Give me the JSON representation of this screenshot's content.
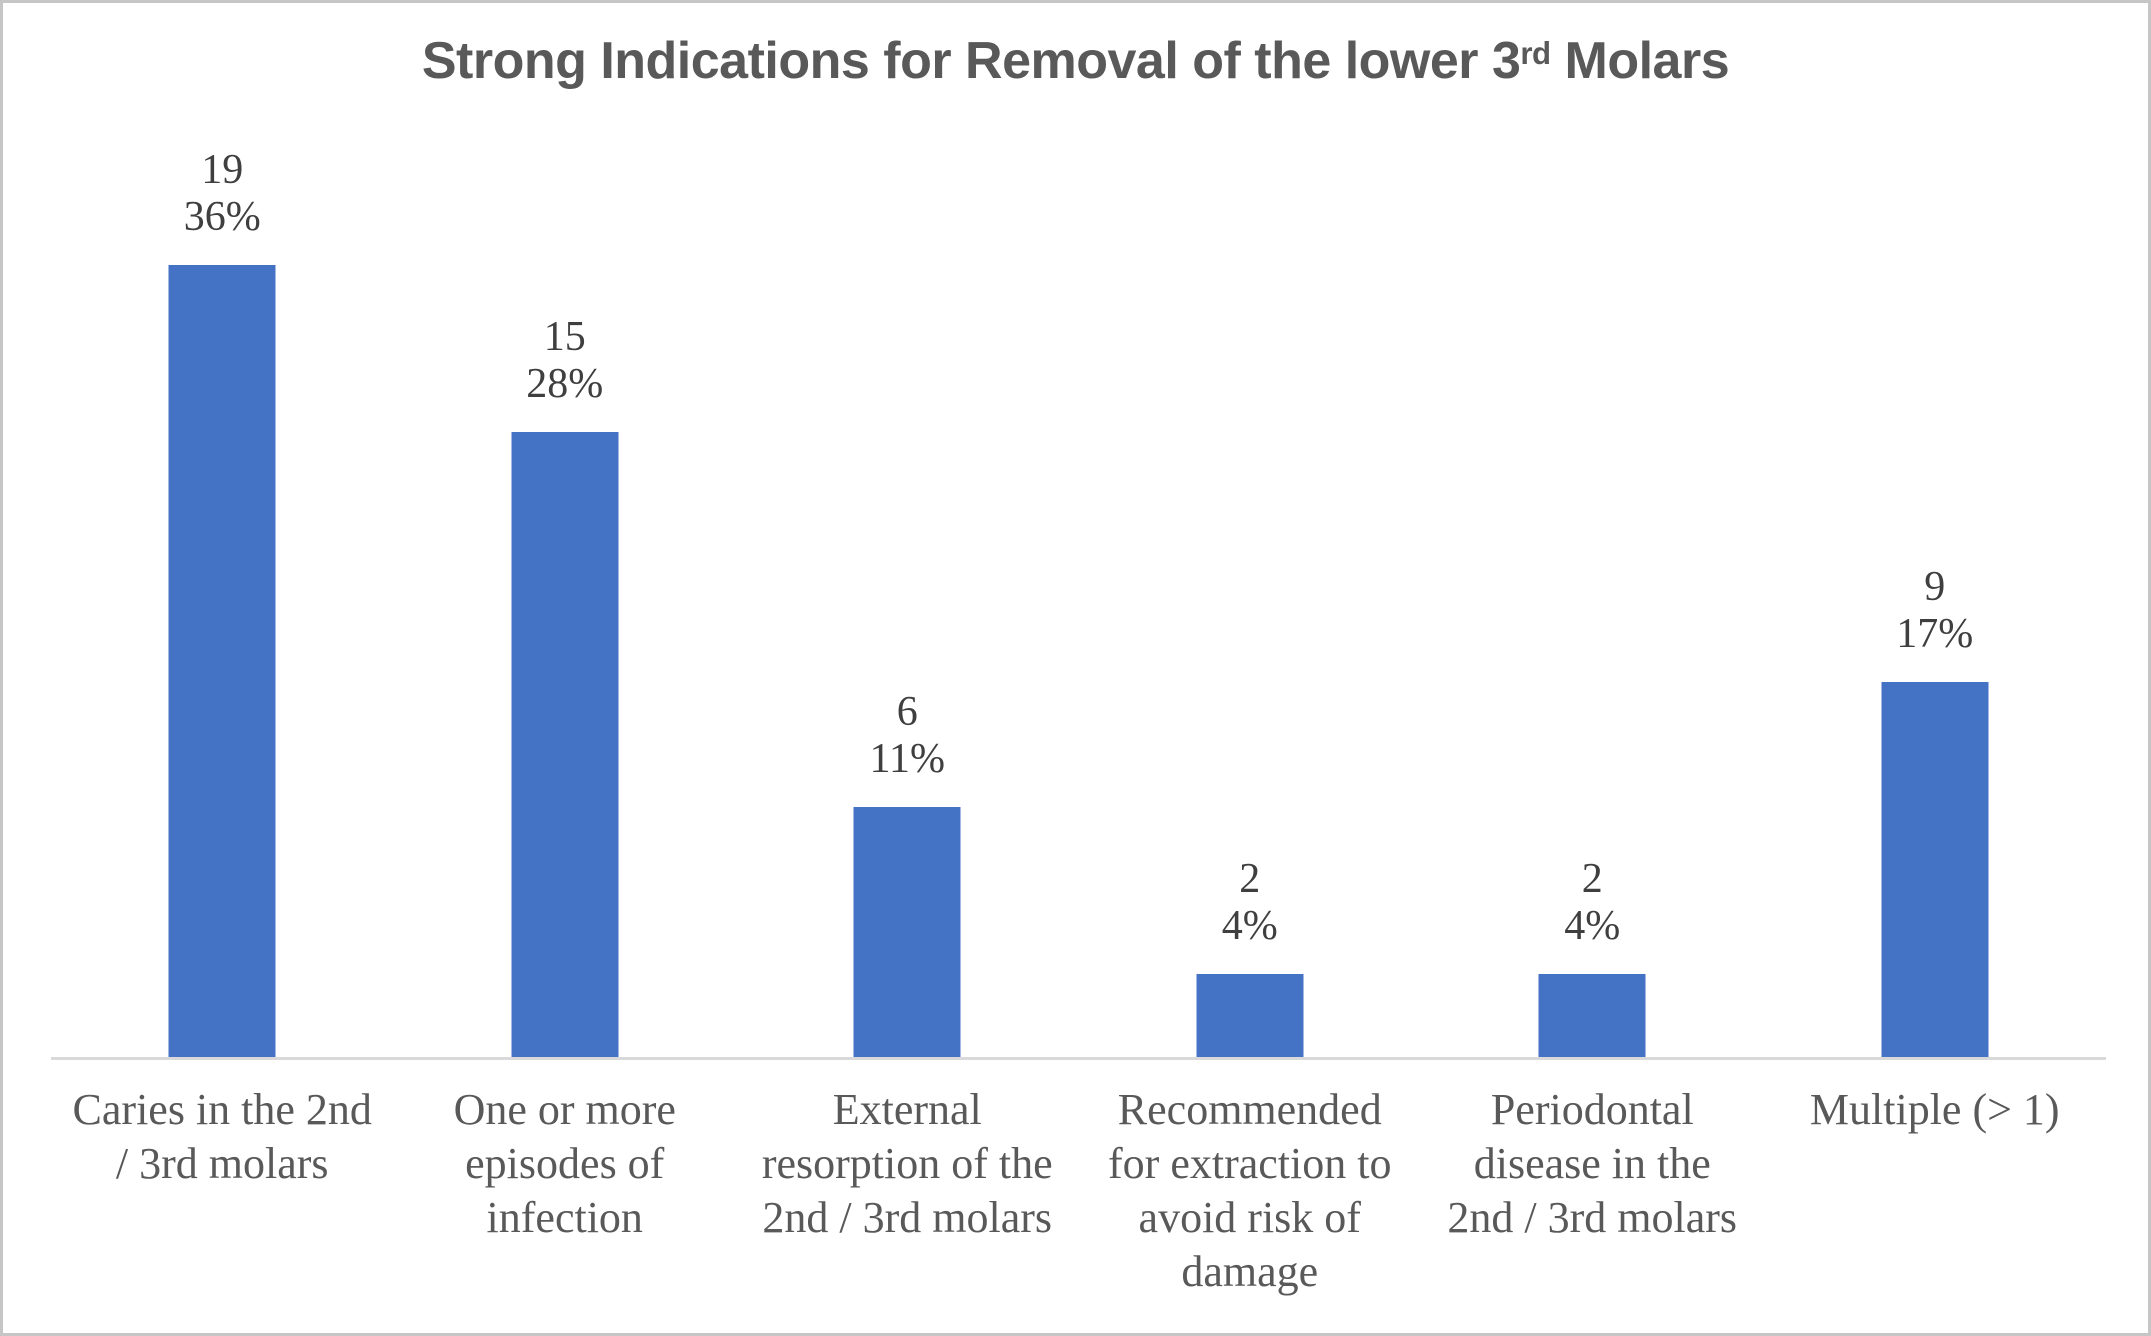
{
  "page": {
    "background_color": "#ffffff",
    "border_color": "#c6c6c6"
  },
  "chart_data": {
    "type": "bar",
    "title": "Strong Indications for Removal of the lower 3rd Molars",
    "title_parts": {
      "prefix": "Strong Indications for Removal of the lower 3",
      "superscript": "rd",
      "suffix": " Molars"
    },
    "categories": [
      "Caries in the 2nd / 3rd molars",
      "One or more episodes of infection",
      "External resorption of the 2nd / 3rd molars",
      "Recommended for extraction to avoid risk of damage",
      "Periodontal disease in the 2nd / 3rd molars",
      "Multiple (> 1)"
    ],
    "category_label_lines": [
      "Caries in the 2nd\n/ 3rd molars",
      "One or more\nepisodes of\ninfection",
      "External\nresorption of the\n2nd / 3rd molars",
      "Recommended\nfor extraction to\navoid risk of\ndamage",
      "Periodontal\ndisease in the\n2nd / 3rd molars",
      "Multiple (> 1)"
    ],
    "values": [
      19,
      15,
      6,
      2,
      2,
      9
    ],
    "percent_labels": [
      "36%",
      "28%",
      "11%",
      "4%",
      "4%",
      "17%"
    ],
    "data_label_lines": [
      "19\n36%",
      "15\n28%",
      "6\n11%",
      "2\n4%",
      "2\n4%",
      "9\n17%"
    ],
    "xlabel": "",
    "ylabel": "",
    "ylim": [
      0,
      20
    ],
    "grid": false,
    "legend_position": "none",
    "bar_color": "#4472C4",
    "axis_line_color": "#D9D9D9",
    "title_color": "#595959",
    "value_label_color": "#3F3F3F",
    "category_label_color": "#595959"
  }
}
